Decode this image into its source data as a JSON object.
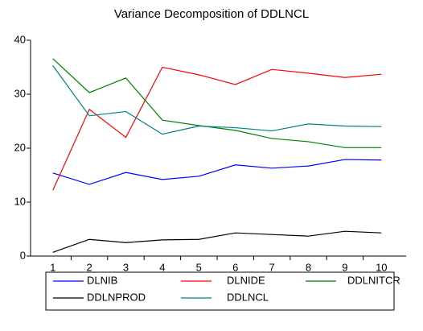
{
  "chart_data": {
    "type": "line",
    "title": "Variance Decomposition of DDLNCL",
    "categories": [
      "1",
      "2",
      "3",
      "4",
      "5",
      "6",
      "7",
      "8",
      "9",
      "10"
    ],
    "series": [
      {
        "name": "DLNIB",
        "color": "#0000ff",
        "values": [
          15.4,
          13.3,
          15.5,
          14.2,
          14.8,
          16.9,
          16.3,
          16.7,
          17.9,
          17.8
        ]
      },
      {
        "name": "DLNIDE",
        "color": "#ff0000",
        "values": [
          12.2,
          27.2,
          22.0,
          35.0,
          33.6,
          31.8,
          34.6,
          33.9,
          33.1,
          33.7
        ]
      },
      {
        "name": "DDLNITCR",
        "color": "#008000",
        "values": [
          36.6,
          30.3,
          33.0,
          25.2,
          24.2,
          23.3,
          21.8,
          21.2,
          20.1,
          20.1
        ]
      },
      {
        "name": "DDLNPROD",
        "color": "#000000",
        "values": [
          0.7,
          3.1,
          2.5,
          3.0,
          3.1,
          4.3,
          4.0,
          3.7,
          4.6,
          4.3
        ]
      },
      {
        "name": "DDLNCL",
        "color": "#008080",
        "values": [
          35.3,
          26.0,
          26.8,
          22.6,
          24.1,
          23.8,
          23.2,
          24.5,
          24.1,
          24.0
        ]
      }
    ],
    "ylim": [
      0,
      40
    ],
    "yticks": [
      0,
      10,
      20,
      30,
      40
    ],
    "grid": false,
    "legend": "bottom"
  }
}
